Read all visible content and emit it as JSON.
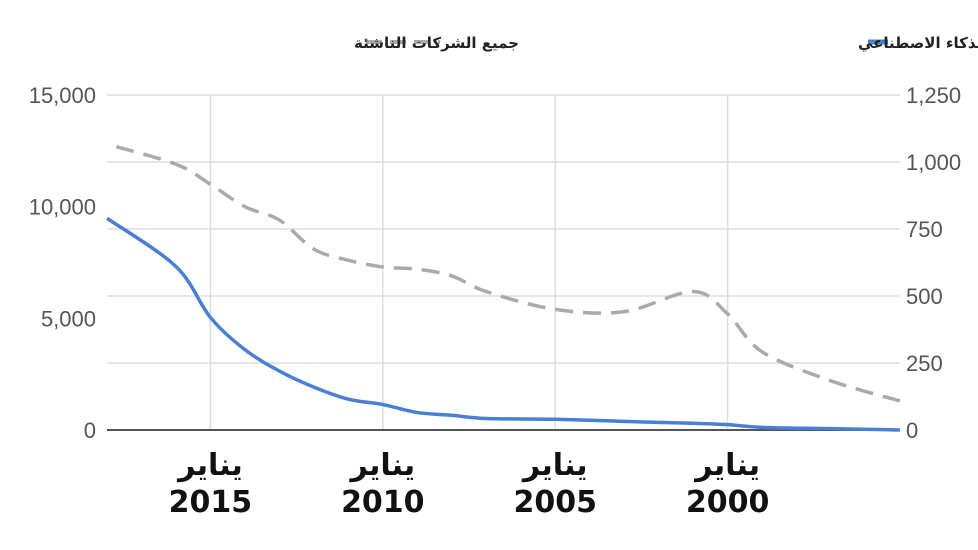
{
  "chart_data": {
    "type": "line",
    "x_direction": "right-to-left",
    "categories": [
      "يناير 2000",
      "يناير 2005",
      "يناير 2010",
      "يناير 2015"
    ],
    "x": [
      1995,
      1997,
      1999,
      2000,
      2001,
      2003,
      2005,
      2007,
      2008,
      2009,
      2010,
      2011,
      2012,
      2013,
      2014,
      2015,
      2016,
      2018
    ],
    "axes": {
      "left": {
        "ylim": [
          0,
          15000
        ],
        "ticks": [
          "0",
          "5,000",
          "10,000",
          "15,000"
        ]
      },
      "right": {
        "ylim": [
          0,
          1250
        ],
        "ticks": [
          "0",
          "250",
          "500",
          "750",
          "1,000",
          "1,250"
        ]
      }
    },
    "series": [
      {
        "name": "الشركات الناشئة المختصة بالذكاء الاصطناعي",
        "axis": "right",
        "color": "#4a7fd4",
        "style": "solid",
        "values": [
          0,
          5,
          10,
          20,
          25,
          32,
          40,
          43,
          55,
          65,
          95,
          115,
          160,
          220,
          300,
          420,
          610,
          790
        ]
      },
      {
        "name": "جميع الشركات الناشئة",
        "axis": "left",
        "color": "#aaaaaa",
        "style": "dashed",
        "values": [
          1300,
          2200,
          3500,
          5200,
          6200,
          5300,
          5400,
          6200,
          6900,
          7200,
          7300,
          7600,
          8100,
          9400,
          10000,
          11000,
          11900,
          12800
        ]
      }
    ],
    "grid": true,
    "legend_position": "top"
  }
}
